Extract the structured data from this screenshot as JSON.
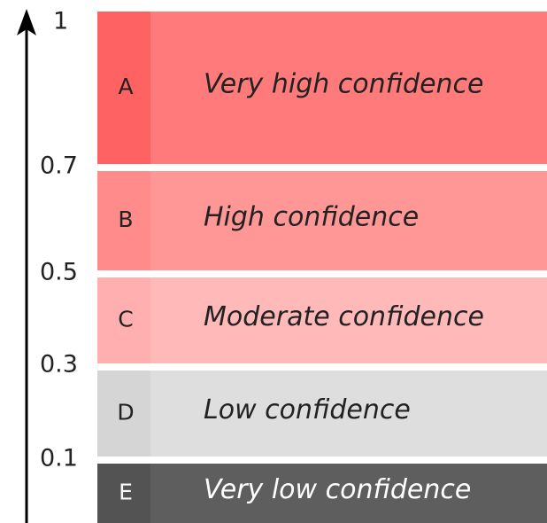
{
  "axis": {
    "ticks": [
      "1",
      "0.7",
      "0.5",
      "0.3",
      "0.1"
    ]
  },
  "bands": [
    {
      "letter": "A",
      "label": "Very high confidence"
    },
    {
      "letter": "B",
      "label": "High confidence"
    },
    {
      "letter": "C",
      "label": "Moderate confidence"
    },
    {
      "letter": "D",
      "label": "Low confidence"
    },
    {
      "letter": "E",
      "label": "Very low confidence"
    }
  ]
}
